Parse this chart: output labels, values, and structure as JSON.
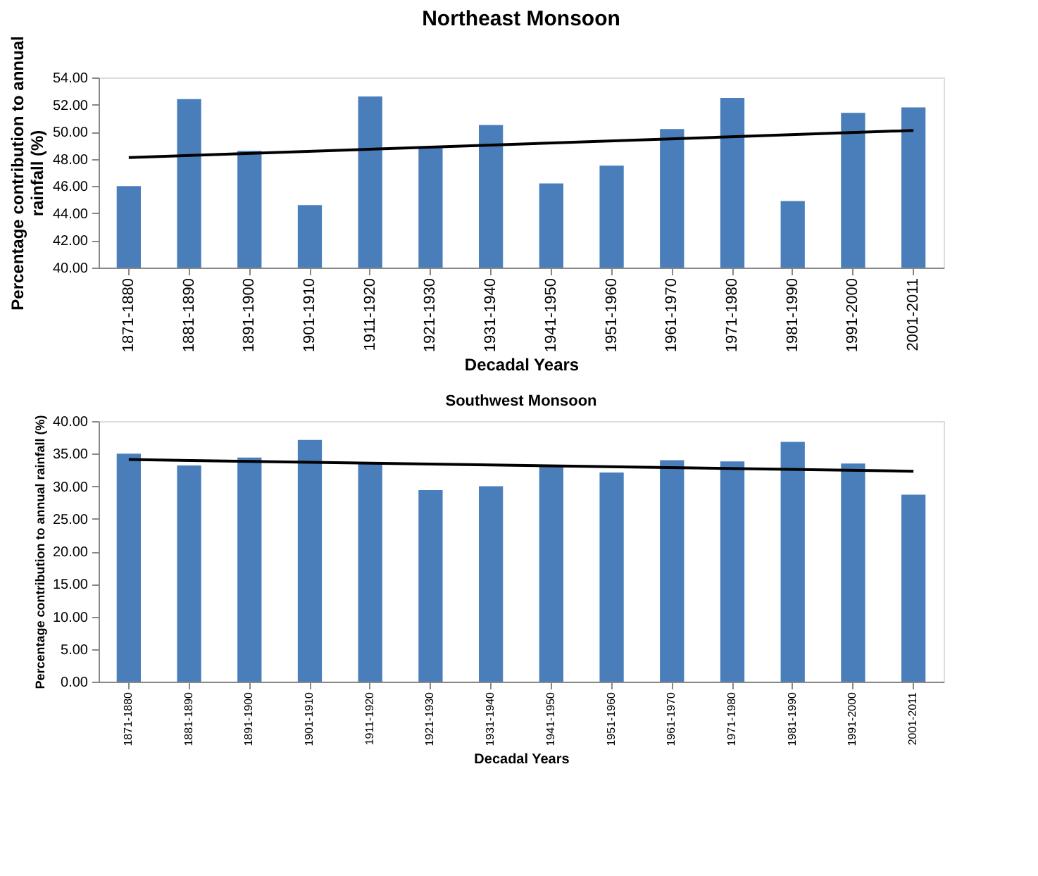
{
  "chart_data": [
    {
      "type": "bar",
      "title": "Northeast Monsoon",
      "xlabel": "Decadal Years",
      "ylabel": "Percentage contribution to annual\nrainfall (%)",
      "categories": [
        "1871-1880",
        "1881-1890",
        "1891-1900",
        "1901-1910",
        "1911-1920",
        "1921-1930",
        "1931-1940",
        "1941-1950",
        "1951-1960",
        "1961-1970",
        "1971-1980",
        "1981-1990",
        "1991-2000",
        "2001-2011"
      ],
      "series": [
        {
          "color": "#4a7ebb",
          "values": [
            46.0,
            52.4,
            48.6,
            44.6,
            52.6,
            48.9,
            50.5,
            46.2,
            47.5,
            50.2,
            52.5,
            44.9,
            51.4,
            51.8
          ]
        },
        {
          "type": "line",
          "color": "#000000",
          "x": [
            "1871-1880",
            "2001-2011"
          ],
          "values": [
            48.1,
            50.1
          ]
        }
      ],
      "ylim": [
        40,
        54
      ],
      "yticks": [
        {
          "value": 40,
          "label": "40.00"
        },
        {
          "value": 42,
          "label": "42.00"
        },
        {
          "value": 44,
          "label": "44.00"
        },
        {
          "value": 46,
          "label": "46.00"
        },
        {
          "value": 48,
          "label": "48.00"
        },
        {
          "value": 50,
          "label": "50.00"
        },
        {
          "value": 52,
          "label": "52.00"
        },
        {
          "value": 54,
          "label": "54.00"
        }
      ],
      "grid": false
    },
    {
      "type": "bar",
      "title": "Southwest Monsoon",
      "xlabel": "Decadal Years",
      "ylabel": "Percentage contribution to annual rainfall (%)",
      "categories": [
        "1871-1880",
        "1881-1890",
        "1891-1900",
        "1901-1910",
        "1911-1920",
        "1921-1930",
        "1931-1940",
        "1941-1950",
        "1951-1960",
        "1961-1970",
        "1971-1980",
        "1981-1990",
        "1991-2000",
        "2001-2011"
      ],
      "series": [
        {
          "color": "#4a7ebb",
          "values": [
            35.0,
            33.2,
            34.4,
            37.1,
            33.6,
            29.4,
            30.0,
            33.0,
            32.1,
            34.0,
            33.8,
            36.8,
            33.5,
            28.7
          ]
        },
        {
          "type": "line",
          "color": "#000000",
          "x": [
            "1871-1880",
            "2001-2011"
          ],
          "values": [
            34.1,
            32.3
          ]
        }
      ],
      "ylim": [
        0,
        40
      ],
      "yticks": [
        {
          "value": 0,
          "label": "0.00"
        },
        {
          "value": 5,
          "label": "5.00"
        },
        {
          "value": 10,
          "label": "10.00"
        },
        {
          "value": 15,
          "label": "15.00"
        },
        {
          "value": 20,
          "label": "20.00"
        },
        {
          "value": 25,
          "label": "25.00"
        },
        {
          "value": 30,
          "label": "30.00"
        },
        {
          "value": 35,
          "label": "35.00"
        },
        {
          "value": 40,
          "label": "40.00"
        }
      ],
      "grid": false
    }
  ]
}
